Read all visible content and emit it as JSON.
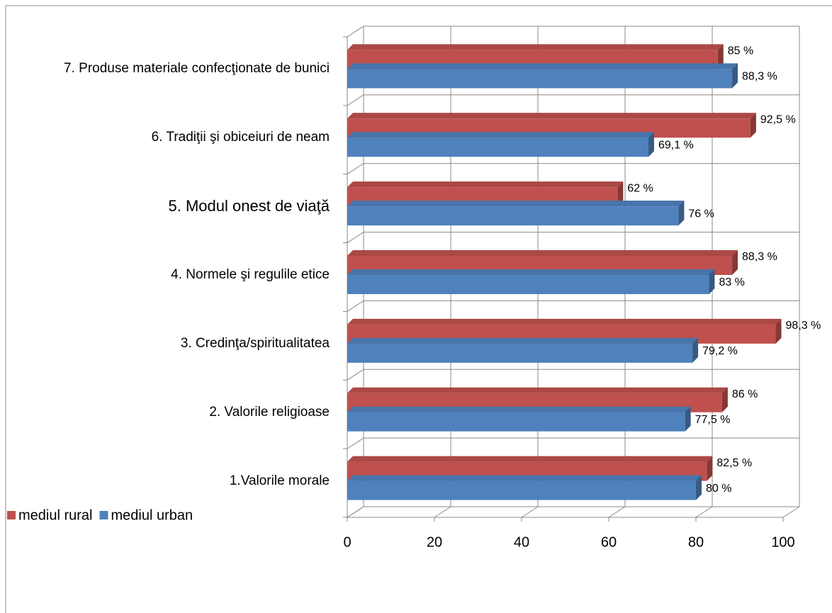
{
  "chart_data": {
    "type": "hbar3d",
    "categories": [
      "1.Valorile morale",
      "2. Valorile religioase",
      "3. Credinţa/spiritualitatea",
      "4. Normele şi regulile etice",
      "5. Modul onest de viaţă",
      "6. Tradiţii şi obiceiuri de neam",
      "7. Produse materiale confecţionate de bunici"
    ],
    "series": [
      {
        "name": "mediul rural",
        "color": "#c0504d",
        "values": [
          82.5,
          86,
          98.3,
          88.3,
          62,
          92.5,
          85
        ],
        "value_labels": [
          "82,5 %",
          "86 %",
          "98,3 %",
          "88,3 %",
          "62 %",
          "92,5 %",
          "85 %"
        ]
      },
      {
        "name": "mediul urban",
        "color": "#4f81bd",
        "values": [
          80,
          77.5,
          79.2,
          83,
          76,
          69.1,
          88.3
        ],
        "value_labels": [
          "80 %",
          "77,5 %",
          "79,2 %",
          "83 %",
          "76 %",
          "69,1 %",
          "88,3 %"
        ]
      }
    ],
    "xlim": [
      0,
      100
    ],
    "xticks": [
      0,
      20,
      40,
      60,
      80,
      100
    ],
    "grid": true,
    "legend": "bottom-left"
  }
}
